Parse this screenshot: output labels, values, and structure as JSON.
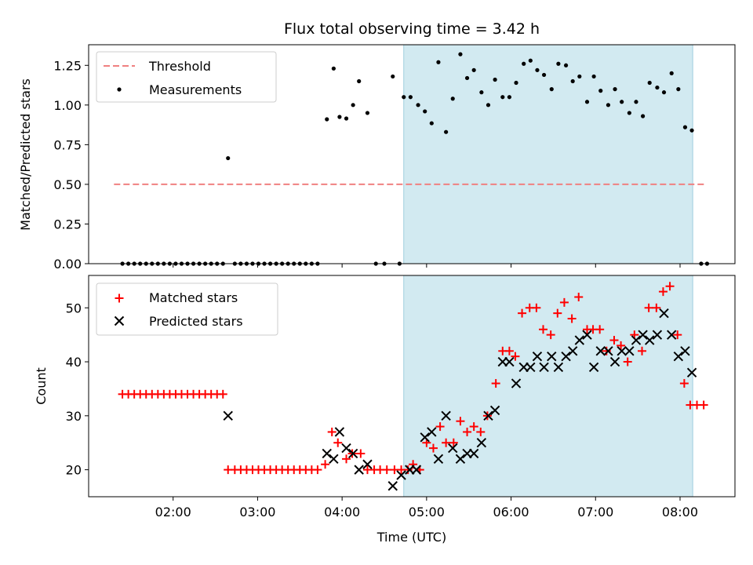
{
  "title": "Flux total observing time = 3.42 h",
  "colors": {
    "threshold": "#f08080",
    "span": "#add8e6",
    "matched": "#ff0000",
    "predicted": "#000000",
    "measure": "#000000"
  },
  "chart_data": [
    {
      "type": "scatter",
      "title": "Flux total observing time = 3.42 h",
      "xlabel": "",
      "ylabel": "Matched/Predicted stars",
      "ylim": [
        0,
        1.38
      ],
      "xlim": [
        1.0,
        8.65
      ],
      "y_ticks": [
        0.0,
        0.25,
        0.5,
        0.75,
        1.0,
        1.25
      ],
      "y_tick_labels": [
        "0.00",
        "0.25",
        "0.50",
        "0.75",
        "1.00",
        "1.25"
      ],
      "legend": {
        "placement": "top-left",
        "entries": [
          "Threshold",
          "Measurements"
        ]
      },
      "shaded_span": [
        4.73,
        8.15
      ],
      "threshold": {
        "name": "Threshold",
        "y": 0.5,
        "x": [
          1.3,
          8.3
        ]
      },
      "series": [
        {
          "name": "Measurements",
          "points": [
            [
              1.4,
              0
            ],
            [
              1.47,
              0
            ],
            [
              1.54,
              0
            ],
            [
              1.61,
              0
            ],
            [
              1.68,
              0
            ],
            [
              1.75,
              0
            ],
            [
              1.82,
              0
            ],
            [
              1.89,
              0
            ],
            [
              1.96,
              0
            ],
            [
              2.03,
              0
            ],
            [
              2.1,
              0
            ],
            [
              2.17,
              0
            ],
            [
              2.24,
              0
            ],
            [
              2.31,
              0
            ],
            [
              2.38,
              0
            ],
            [
              2.45,
              0
            ],
            [
              2.52,
              0
            ],
            [
              2.59,
              0
            ],
            [
              2.65,
              0.665
            ],
            [
              2.73,
              0
            ],
            [
              2.8,
              0
            ],
            [
              2.87,
              0
            ],
            [
              2.94,
              0
            ],
            [
              3.01,
              0
            ],
            [
              3.08,
              0
            ],
            [
              3.15,
              0
            ],
            [
              3.22,
              0
            ],
            [
              3.29,
              0
            ],
            [
              3.36,
              0
            ],
            [
              3.43,
              0
            ],
            [
              3.5,
              0
            ],
            [
              3.57,
              0
            ],
            [
              3.64,
              0
            ],
            [
              3.71,
              0
            ],
            [
              3.82,
              0.91
            ],
            [
              3.9,
              1.23
            ],
            [
              3.97,
              0.925
            ],
            [
              4.05,
              0.915
            ],
            [
              4.13,
              1.0
            ],
            [
              4.2,
              1.15
            ],
            [
              4.3,
              0.95
            ],
            [
              4.4,
              0
            ],
            [
              4.5,
              0
            ],
            [
              4.6,
              1.18
            ],
            [
              4.68,
              0
            ],
            [
              4.73,
              1.05
            ],
            [
              4.81,
              1.05
            ],
            [
              4.9,
              1.0
            ],
            [
              4.98,
              0.96
            ],
            [
              5.06,
              0.885
            ],
            [
              5.14,
              1.27
            ],
            [
              5.23,
              0.83
            ],
            [
              5.31,
              1.04
            ],
            [
              5.4,
              1.32
            ],
            [
              5.48,
              1.17
            ],
            [
              5.56,
              1.22
            ],
            [
              5.65,
              1.08
            ],
            [
              5.73,
              1.0
            ],
            [
              5.81,
              1.16
            ],
            [
              5.9,
              1.05
            ],
            [
              5.98,
              1.05
            ],
            [
              6.06,
              1.14
            ],
            [
              6.15,
              1.26
            ],
            [
              6.23,
              1.28
            ],
            [
              6.31,
              1.22
            ],
            [
              6.39,
              1.19
            ],
            [
              6.48,
              1.1
            ],
            [
              6.56,
              1.26
            ],
            [
              6.65,
              1.25
            ],
            [
              6.73,
              1.15
            ],
            [
              6.81,
              1.18
            ],
            [
              6.9,
              1.02
            ],
            [
              6.98,
              1.18
            ],
            [
              7.06,
              1.09
            ],
            [
              7.15,
              1.0
            ],
            [
              7.23,
              1.1
            ],
            [
              7.31,
              1.02
            ],
            [
              7.4,
              0.95
            ],
            [
              7.48,
              1.02
            ],
            [
              7.56,
              0.93
            ],
            [
              7.64,
              1.14
            ],
            [
              7.73,
              1.11
            ],
            [
              7.81,
              1.08
            ],
            [
              7.9,
              1.2
            ],
            [
              7.98,
              1.1
            ],
            [
              8.06,
              0.86
            ],
            [
              8.14,
              0.84
            ],
            [
              8.25,
              0
            ],
            [
              8.32,
              0
            ]
          ]
        }
      ]
    },
    {
      "type": "scatter",
      "title": "",
      "xlabel": "Time (UTC)",
      "ylabel": "Count",
      "ylim": [
        15,
        56
      ],
      "xlim": [
        1.0,
        8.65
      ],
      "y_ticks": [
        20,
        30,
        40,
        50
      ],
      "y_tick_labels": [
        "20",
        "30",
        "40",
        "50"
      ],
      "x_ticks": [
        2,
        3,
        4,
        5,
        6,
        7,
        8
      ],
      "x_tick_labels": [
        "02:00",
        "03:00",
        "04:00",
        "05:00",
        "06:00",
        "07:00",
        "08:00"
      ],
      "legend": {
        "placement": "top-left",
        "entries": [
          "Matched stars",
          "Predicted stars"
        ]
      },
      "shaded_span": [
        4.73,
        8.15
      ],
      "series": [
        {
          "name": "Matched stars",
          "marker": "+",
          "points": [
            [
              1.4,
              34
            ],
            [
              1.47,
              34
            ],
            [
              1.54,
              34
            ],
            [
              1.61,
              34
            ],
            [
              1.68,
              34
            ],
            [
              1.75,
              34
            ],
            [
              1.82,
              34
            ],
            [
              1.89,
              34
            ],
            [
              1.96,
              34
            ],
            [
              2.03,
              34
            ],
            [
              2.1,
              34
            ],
            [
              2.17,
              34
            ],
            [
              2.24,
              34
            ],
            [
              2.31,
              34
            ],
            [
              2.38,
              34
            ],
            [
              2.45,
              34
            ],
            [
              2.52,
              34
            ],
            [
              2.59,
              34
            ],
            [
              2.65,
              20
            ],
            [
              2.73,
              20
            ],
            [
              2.8,
              20
            ],
            [
              2.87,
              20
            ],
            [
              2.94,
              20
            ],
            [
              3.01,
              20
            ],
            [
              3.08,
              20
            ],
            [
              3.15,
              20
            ],
            [
              3.22,
              20
            ],
            [
              3.29,
              20
            ],
            [
              3.36,
              20
            ],
            [
              3.43,
              20
            ],
            [
              3.5,
              20
            ],
            [
              3.57,
              20
            ],
            [
              3.64,
              20
            ],
            [
              3.71,
              20
            ],
            [
              3.8,
              21
            ],
            [
              3.88,
              27
            ],
            [
              3.95,
              25
            ],
            [
              4.05,
              22
            ],
            [
              4.12,
              23
            ],
            [
              4.22,
              23
            ],
            [
              4.3,
              20
            ],
            [
              4.38,
              20
            ],
            [
              4.45,
              20
            ],
            [
              4.53,
              20
            ],
            [
              4.62,
              20
            ],
            [
              4.7,
              20
            ],
            [
              4.78,
              20
            ],
            [
              4.84,
              21
            ],
            [
              4.92,
              20
            ],
            [
              5.0,
              25
            ],
            [
              5.08,
              24
            ],
            [
              5.16,
              28
            ],
            [
              5.23,
              25
            ],
            [
              5.32,
              25
            ],
            [
              5.4,
              29
            ],
            [
              5.48,
              27
            ],
            [
              5.56,
              28
            ],
            [
              5.64,
              27
            ],
            [
              5.72,
              30
            ],
            [
              5.82,
              36
            ],
            [
              5.9,
              42
            ],
            [
              5.98,
              42
            ],
            [
              6.05,
              41
            ],
            [
              6.13,
              49
            ],
            [
              6.22,
              50
            ],
            [
              6.3,
              50
            ],
            [
              6.38,
              46
            ],
            [
              6.47,
              45
            ],
            [
              6.55,
              49
            ],
            [
              6.63,
              51
            ],
            [
              6.72,
              48
            ],
            [
              6.8,
              52
            ],
            [
              6.9,
              46
            ],
            [
              6.97,
              46
            ],
            [
              7.05,
              46
            ],
            [
              7.13,
              42
            ],
            [
              7.22,
              44
            ],
            [
              7.3,
              43
            ],
            [
              7.38,
              40
            ],
            [
              7.46,
              45
            ],
            [
              7.55,
              42
            ],
            [
              7.63,
              50
            ],
            [
              7.72,
              50
            ],
            [
              7.8,
              53
            ],
            [
              7.88,
              54
            ],
            [
              7.97,
              45
            ],
            [
              8.05,
              36
            ],
            [
              8.12,
              32
            ],
            [
              8.2,
              32
            ],
            [
              8.28,
              32
            ]
          ]
        },
        {
          "name": "Predicted stars",
          "marker": "x",
          "points": [
            [
              2.65,
              30
            ],
            [
              3.82,
              23
            ],
            [
              3.9,
              22
            ],
            [
              3.97,
              27
            ],
            [
              4.05,
              24
            ],
            [
              4.13,
              23
            ],
            [
              4.2,
              20
            ],
            [
              4.3,
              21
            ],
            [
              4.6,
              17
            ],
            [
              4.7,
              19
            ],
            [
              4.8,
              20
            ],
            [
              4.88,
              20
            ],
            [
              4.98,
              26
            ],
            [
              5.06,
              27
            ],
            [
              5.14,
              22
            ],
            [
              5.23,
              30
            ],
            [
              5.31,
              24
            ],
            [
              5.4,
              22
            ],
            [
              5.48,
              23
            ],
            [
              5.56,
              23
            ],
            [
              5.65,
              25
            ],
            [
              5.73,
              30
            ],
            [
              5.81,
              31
            ],
            [
              5.9,
              40
            ],
            [
              5.98,
              40
            ],
            [
              6.06,
              36
            ],
            [
              6.15,
              39
            ],
            [
              6.23,
              39
            ],
            [
              6.31,
              41
            ],
            [
              6.39,
              39
            ],
            [
              6.48,
              41
            ],
            [
              6.56,
              39
            ],
            [
              6.65,
              41
            ],
            [
              6.73,
              42
            ],
            [
              6.81,
              44
            ],
            [
              6.9,
              45
            ],
            [
              6.98,
              39
            ],
            [
              7.06,
              42
            ],
            [
              7.15,
              42
            ],
            [
              7.23,
              40
            ],
            [
              7.31,
              42
            ],
            [
              7.4,
              42
            ],
            [
              7.48,
              44
            ],
            [
              7.56,
              45
            ],
            [
              7.64,
              44
            ],
            [
              7.73,
              45
            ],
            [
              7.81,
              49
            ],
            [
              7.9,
              45
            ],
            [
              7.98,
              41
            ],
            [
              8.06,
              42
            ],
            [
              8.14,
              38
            ]
          ]
        }
      ]
    }
  ]
}
